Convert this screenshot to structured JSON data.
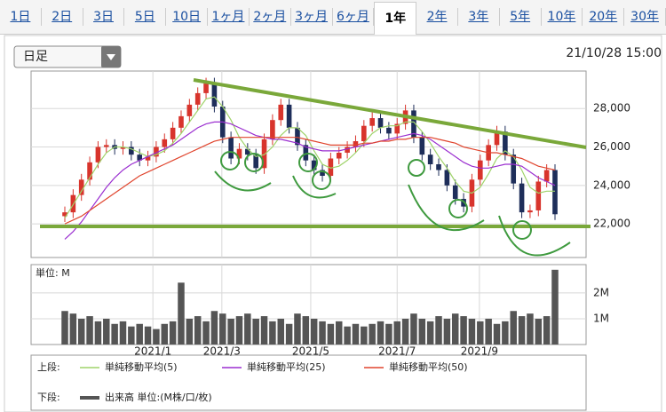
{
  "tabs": [
    "1日",
    "2日",
    "3日",
    "5日",
    "10日",
    "1ヶ月",
    "2ヶ月",
    "3ヶ月",
    "6ヶ月",
    "1年",
    "2年",
    "3年",
    "5年",
    "10年",
    "20年",
    "30年"
  ],
  "active_tab": 9,
  "chart_selector": "日足",
  "timestamp": "21/10/28 15:00",
  "chart_data": [
    {
      "type": "candlestick",
      "legend_label": "上段:",
      "up_color": "#d8342c",
      "down_color": "#1e2e5a",
      "open": [
        22400,
        22600,
        23500,
        24300,
        25200,
        26000,
        26100,
        25900,
        26000,
        25600,
        25300,
        25500,
        26000,
        26400,
        27000,
        27600,
        28200,
        28800,
        29300,
        28100,
        26500,
        25400,
        25900,
        25600,
        24900,
        26400,
        27400,
        28200,
        27000,
        26100,
        25300,
        24800,
        24500,
        25400,
        25700,
        26000,
        26300,
        27100,
        27500,
        27000,
        26700,
        27200,
        27900,
        26500,
        25600,
        25100,
        24800,
        24000,
        23300,
        22900,
        24300,
        25300,
        26100,
        26800,
        25600,
        24100,
        22600,
        22700,
        24200,
        24800
      ],
      "high": [
        22900,
        23800,
        24600,
        25500,
        26300,
        26400,
        26400,
        26300,
        26300,
        25900,
        25800,
        26300,
        26700,
        27300,
        27900,
        28500,
        29100,
        29600,
        29600,
        28400,
        26800,
        26200,
        26200,
        25900,
        26700,
        27700,
        28500,
        28500,
        27300,
        26400,
        25600,
        25100,
        25700,
        26000,
        26300,
        26600,
        27400,
        27800,
        27800,
        27300,
        27500,
        28200,
        28200,
        26800,
        25900,
        25400,
        25100,
        24300,
        23600,
        24600,
        25600,
        26400,
        27100,
        27100,
        25900,
        24400,
        23000,
        24500,
        25100,
        25100
      ],
      "low": [
        22100,
        22300,
        23200,
        24000,
        24900,
        25700,
        25600,
        25600,
        25300,
        25000,
        25000,
        25200,
        25700,
        26100,
        26700,
        27300,
        27900,
        28500,
        27800,
        26200,
        25100,
        25100,
        25300,
        24600,
        24600,
        26100,
        27100,
        26700,
        25800,
        25000,
        24500,
        24200,
        24200,
        25100,
        25400,
        25700,
        26000,
        26800,
        26700,
        26400,
        26400,
        26900,
        26200,
        25300,
        24800,
        24500,
        23700,
        23000,
        22600,
        22600,
        24000,
        25000,
        25800,
        25300,
        23800,
        22300,
        22300,
        22400,
        23900,
        22200
      ],
      "close": [
        22600,
        23500,
        24300,
        25200,
        26000,
        26100,
        25900,
        26000,
        25600,
        25300,
        25500,
        26000,
        26400,
        27000,
        27600,
        28200,
        28800,
        29300,
        28100,
        26500,
        25400,
        25900,
        25600,
        24900,
        26400,
        27400,
        28200,
        27000,
        26100,
        25300,
        24800,
        24500,
        25400,
        25700,
        26000,
        26300,
        27100,
        27500,
        27000,
        26700,
        27200,
        27900,
        26500,
        25600,
        25100,
        24800,
        24000,
        23300,
        22900,
        24300,
        25300,
        26100,
        26800,
        25600,
        24100,
        22600,
        22700,
        24200,
        24800,
        22500
      ],
      "series": [
        {
          "name": "単純移動平均(5)",
          "color": "#9fd36a",
          "values": [
            22300,
            23000,
            23700,
            24400,
            25100,
            25700,
            26000,
            26000,
            25900,
            25700,
            25500,
            25600,
            25800,
            26200,
            26700,
            27300,
            27900,
            28500,
            28600,
            28100,
            27400,
            26500,
            25900,
            25500,
            25600,
            26000,
            26600,
            27000,
            27000,
            26600,
            25800,
            25100,
            24900,
            25000,
            25300,
            25700,
            26200,
            26700,
            27000,
            27100,
            27100,
            27300,
            27300,
            26800,
            26200,
            25500,
            24900,
            24200,
            23700,
            23600,
            23900,
            24600,
            25400,
            25800,
            25500,
            24800,
            23900,
            23600,
            23700,
            23700
          ]
        },
        {
          "name": "単純移動平均(25)",
          "color": "#9b2fd0",
          "values": [
            21200,
            21600,
            22100,
            22700,
            23300,
            23900,
            24400,
            24800,
            25100,
            25300,
            25500,
            25700,
            25900,
            26100,
            26400,
            26700,
            27000,
            27200,
            27300,
            27300,
            27200,
            27000,
            26800,
            26600,
            26500,
            26400,
            26400,
            26300,
            26200,
            26000,
            25900,
            25800,
            25800,
            25800,
            25900,
            26000,
            26100,
            26200,
            26300,
            26400,
            26500,
            26600,
            26700,
            26600,
            26400,
            26100,
            25800,
            25500,
            25200,
            25000,
            24900,
            24900,
            25000,
            25100,
            25100,
            25000,
            24700,
            24400,
            24200,
            24000
          ]
        },
        {
          "name": "単純移動平均(50)",
          "color": "#e0452e",
          "values": [
            22000,
            22200,
            22400,
            22700,
            23000,
            23300,
            23600,
            23900,
            24200,
            24500,
            24700,
            24900,
            25100,
            25300,
            25500,
            25700,
            25900,
            26100,
            26300,
            26400,
            26500,
            26500,
            26500,
            26500,
            26500,
            26500,
            26500,
            26500,
            26500,
            26400,
            26300,
            26200,
            26100,
            26100,
            26100,
            26100,
            26200,
            26200,
            26300,
            26300,
            26400,
            26400,
            26500,
            26500,
            26500,
            26400,
            26300,
            26200,
            26000,
            25900,
            25800,
            25700,
            25700,
            25600,
            25500,
            25400,
            25200,
            25000,
            24900,
            24800
          ]
        }
      ],
      "ylim": [
        20250,
        29950
      ],
      "yticks": [
        {
          "value": 22000,
          "label": "22,000"
        },
        {
          "value": 24000,
          "label": "24,000"
        },
        {
          "value": 26000,
          "label": "26,000"
        },
        {
          "value": 28000,
          "label": "28,000"
        }
      ],
      "grid": true
    },
    {
      "type": "bar",
      "unit_label": "単位: M",
      "legend_label": "下段:",
      "series": [
        {
          "name": "出来高 単位:(M株/口/枚)",
          "color": "#555555",
          "values": [
            1.3,
            1.2,
            1.0,
            1.1,
            0.9,
            1.0,
            0.8,
            0.9,
            0.7,
            0.8,
            0.7,
            0.6,
            0.8,
            0.9,
            2.4,
            1.0,
            1.1,
            0.9,
            1.3,
            1.2,
            1.0,
            1.1,
            1.2,
            1.0,
            1.1,
            0.9,
            1.0,
            0.8,
            1.2,
            1.1,
            1.0,
            0.9,
            0.8,
            0.9,
            0.7,
            0.8,
            0.7,
            0.8,
            0.9,
            0.8,
            0.9,
            1.0,
            1.2,
            1.0,
            0.9,
            1.1,
            1.0,
            1.2,
            1.1,
            1.0,
            0.9,
            1.0,
            0.8,
            0.9,
            1.3,
            1.1,
            1.2,
            1.0,
            1.1,
            2.9
          ]
        }
      ],
      "ylim": [
        0,
        3.1
      ],
      "yticks": [
        {
          "value": 1,
          "label": "1M"
        },
        {
          "value": 2,
          "label": "2M"
        }
      ],
      "xticks": [
        {
          "value": 10.6,
          "label": "2021/1"
        },
        {
          "value": 18.9,
          "label": "2021/3"
        },
        {
          "value": 29.6,
          "label": "2021/5"
        },
        {
          "value": 40,
          "label": "2021/7"
        },
        {
          "value": 49.9,
          "label": "2021/9"
        }
      ],
      "grid": true
    }
  ]
}
